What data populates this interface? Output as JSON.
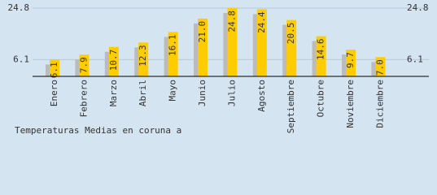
{
  "chart_data": {
    "type": "bar",
    "title": "Temperaturas Medias en coruna a",
    "categories": [
      "Enero",
      "Febrero",
      "Marzo",
      "Abril",
      "Mayo",
      "Junio",
      "Julio",
      "Agosto",
      "Septiembre",
      "Octubre",
      "Noviembre",
      "Diciembre"
    ],
    "values": [
      6.1,
      7.9,
      10.7,
      12.3,
      16.1,
      21.0,
      24.8,
      24.4,
      20.5,
      14.6,
      9.7,
      7.0
    ],
    "value_labels": [
      "6.1",
      "7.9",
      "10.7",
      "12.3",
      "16.1",
      "21.0",
      "24.8",
      "24.4",
      "20.5",
      "14.6",
      "9.7",
      "7.0"
    ],
    "color": "#ffcc00",
    "shadow_color": "#bbbbbb",
    "ylim": [
      0,
      24.8
    ],
    "yticks": [
      6.1,
      24.8
    ],
    "grid": true
  }
}
